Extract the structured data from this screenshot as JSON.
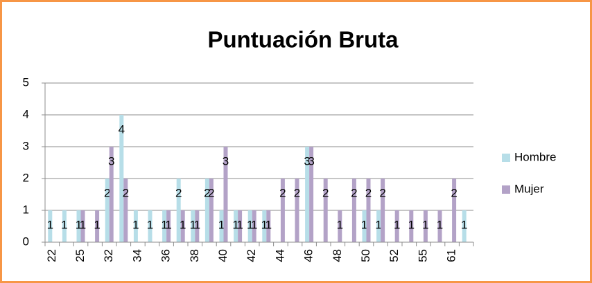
{
  "chart_data": {
    "type": "bar",
    "title": "Puntuación Bruta",
    "categories": [
      "22",
      null,
      "25",
      null,
      "32",
      null,
      "34",
      null,
      "36",
      null,
      "38",
      null,
      "40",
      null,
      "42",
      null,
      "44",
      null,
      "46",
      null,
      "48",
      null,
      "50",
      null,
      "52",
      null,
      "55",
      null,
      "61",
      null
    ],
    "series": [
      {
        "name": "Hombre",
        "color": "#b7dee8",
        "values": [
          1,
          1,
          1,
          null,
          2,
          4,
          1,
          1,
          1,
          2,
          1,
          2,
          1,
          1,
          1,
          1,
          null,
          null,
          3,
          null,
          null,
          null,
          1,
          1,
          null,
          null,
          null,
          null,
          null,
          1
        ]
      },
      {
        "name": "Mujer",
        "color": "#b3a2c7",
        "values": [
          null,
          null,
          1,
          1,
          3,
          2,
          null,
          null,
          1,
          1,
          1,
          2,
          3,
          1,
          1,
          1,
          2,
          2,
          3,
          2,
          1,
          2,
          2,
          2,
          1,
          1,
          1,
          1,
          2,
          null
        ]
      }
    ],
    "ylim": [
      0,
      5
    ],
    "yticks": [
      0,
      1,
      2,
      3,
      4,
      5
    ],
    "grid": true,
    "legend": "right"
  }
}
